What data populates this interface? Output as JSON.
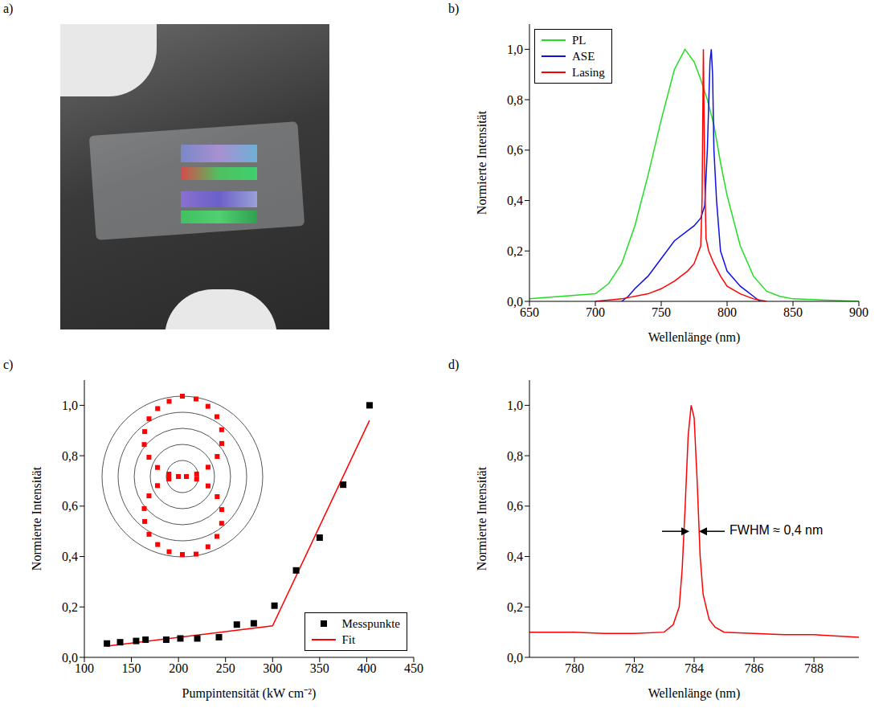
{
  "chart_data": [
    {
      "type": "image",
      "panel_label": "a)"
    },
    {
      "type": "line",
      "panel_label": "b)",
      "x_label": "Wellenlänge (nm)",
      "y_label": "Normierte Intensität",
      "xlim": [
        650,
        900
      ],
      "xticks": [
        650,
        700,
        750,
        800,
        850,
        900
      ],
      "ylim": [
        0,
        1.1
      ],
      "yticks": [
        {
          "value": 0,
          "label": "0,0"
        },
        {
          "value": 0.2,
          "label": "0,2"
        },
        {
          "value": 0.4,
          "label": "0,4"
        },
        {
          "value": 0.6,
          "label": "0,6"
        },
        {
          "value": 0.8,
          "label": "0,8"
        },
        {
          "value": 1.0,
          "label": "1,0"
        }
      ],
      "legend": "upper left",
      "series": [
        {
          "name": "PL",
          "color": "#22dd22",
          "type": "line",
          "x": [
            650,
            700,
            710,
            720,
            730,
            740,
            750,
            760,
            768,
            775,
            780,
            785,
            790,
            795,
            800,
            810,
            820,
            830,
            840,
            850,
            900
          ],
          "values": [
            0.01,
            0.03,
            0.07,
            0.15,
            0.3,
            0.5,
            0.72,
            0.92,
            1.0,
            0.95,
            0.88,
            0.8,
            0.7,
            0.55,
            0.42,
            0.22,
            0.1,
            0.04,
            0.02,
            0.01,
            0.0
          ]
        },
        {
          "name": "ASE",
          "color": "#1010e0",
          "type": "line",
          "x": [
            720,
            725,
            730,
            740,
            750,
            760,
            770,
            775,
            780,
            783,
            785,
            787,
            788,
            789,
            790,
            792,
            795,
            800,
            805,
            810,
            815,
            820,
            825
          ],
          "values": [
            0.0,
            0.02,
            0.05,
            0.1,
            0.17,
            0.24,
            0.28,
            0.3,
            0.33,
            0.38,
            0.6,
            0.95,
            1.0,
            0.9,
            0.6,
            0.4,
            0.2,
            0.12,
            0.09,
            0.06,
            0.04,
            0.02,
            0.0
          ]
        },
        {
          "name": "Lasing",
          "color": "#ff0000",
          "type": "line",
          "x": [
            700,
            720,
            740,
            750,
            760,
            770,
            775,
            780,
            781,
            782,
            783,
            784,
            786,
            790,
            795,
            800,
            810,
            820,
            830
          ],
          "values": [
            0.0,
            0.01,
            0.03,
            0.05,
            0.08,
            0.12,
            0.15,
            0.22,
            0.4,
            1.0,
            0.5,
            0.25,
            0.2,
            0.15,
            0.1,
            0.06,
            0.03,
            0.01,
            0.0
          ]
        }
      ]
    },
    {
      "type": "scatter",
      "panel_label": "c)",
      "x_label": "Pumpintensität (kW cm⁻²)",
      "y_label": "Normierte Intensität",
      "xlim": [
        100,
        450
      ],
      "xticks": [
        100,
        150,
        200,
        250,
        300,
        350,
        400,
        450
      ],
      "ylim": [
        0,
        1.1
      ],
      "yticks": [
        {
          "value": 0,
          "label": "0,0"
        },
        {
          "value": 0.2,
          "label": "0,2"
        },
        {
          "value": 0.4,
          "label": "0,4"
        },
        {
          "value": 0.6,
          "label": "0,6"
        },
        {
          "value": 0.8,
          "label": "0,8"
        },
        {
          "value": 1.0,
          "label": "1,0"
        }
      ],
      "legend": "lower right",
      "series": [
        {
          "name": "Messpunkte",
          "color": "#000000",
          "type": "scatter",
          "marker": "square",
          "x": [
            124,
            138,
            155,
            165,
            187,
            202,
            220,
            243,
            262,
            280,
            302,
            325,
            350,
            375,
            403
          ],
          "values": [
            0.055,
            0.06,
            0.065,
            0.07,
            0.07,
            0.075,
            0.075,
            0.08,
            0.13,
            0.135,
            0.205,
            0.345,
            0.475,
            0.685,
            1.0
          ]
        },
        {
          "name": "Fit",
          "color": "#ff0000",
          "type": "line",
          "x": [
            124,
            300,
            403
          ],
          "values": [
            0.045,
            0.125,
            0.94
          ]
        }
      ],
      "inset": {
        "type": "polar",
        "color": "#ff0000",
        "marker": "square",
        "tick_labels": false,
        "ylim": [
          0,
          1
        ],
        "yticks": [
          0.2,
          0.4,
          0.6,
          0.8,
          1.0
        ],
        "angles": [
          0,
          10,
          20,
          30,
          40,
          50,
          60,
          70,
          80,
          90,
          100,
          110,
          120,
          130,
          140,
          150,
          160,
          170,
          180,
          190,
          200,
          210,
          220,
          230,
          240,
          250,
          260,
          270,
          280,
          290,
          300,
          310,
          320,
          330,
          340,
          350
        ],
        "values": [
          1.0,
          0.98,
          0.93,
          0.86,
          0.76,
          0.64,
          0.5,
          0.34,
          0.18,
          0.05,
          0.18,
          0.34,
          0.5,
          0.64,
          0.76,
          0.86,
          0.93,
          0.98,
          0.97,
          0.95,
          0.9,
          0.83,
          0.73,
          0.62,
          0.48,
          0.33,
          0.17,
          0.05,
          0.17,
          0.33,
          0.48,
          0.62,
          0.73,
          0.83,
          0.9,
          0.95
        ]
      }
    },
    {
      "type": "line",
      "panel_label": "d)",
      "x_label": "Wellenlänge (nm)",
      "y_label": "Normierte Intensität",
      "xlim": [
        778.5,
        789.5
      ],
      "xticks": [
        780,
        782,
        784,
        786,
        788
      ],
      "ylim": [
        0,
        1.1
      ],
      "yticks": [
        {
          "value": 0,
          "label": "0,0"
        },
        {
          "value": 0.2,
          "label": "0,2"
        },
        {
          "value": 0.4,
          "label": "0,4"
        },
        {
          "value": 0.6,
          "label": "0,6"
        },
        {
          "value": 0.8,
          "label": "0,8"
        },
        {
          "value": 1.0,
          "label": "1,0"
        }
      ],
      "annotations": [
        "FWHM ≈ 0,4 nm"
      ],
      "series": [
        {
          "color": "#ff0000",
          "type": "line",
          "x": [
            778.5,
            779,
            780,
            781,
            782,
            783,
            783.3,
            783.5,
            783.6,
            783.7,
            783.8,
            783.9,
            784.0,
            784.1,
            784.2,
            784.3,
            784.5,
            784.7,
            785,
            786,
            787,
            788,
            789.5
          ],
          "values": [
            0.1,
            0.1,
            0.1,
            0.095,
            0.095,
            0.1,
            0.13,
            0.2,
            0.35,
            0.6,
            0.88,
            1.0,
            0.95,
            0.7,
            0.4,
            0.25,
            0.15,
            0.12,
            0.1,
            0.095,
            0.09,
            0.09,
            0.08
          ]
        }
      ]
    }
  ]
}
